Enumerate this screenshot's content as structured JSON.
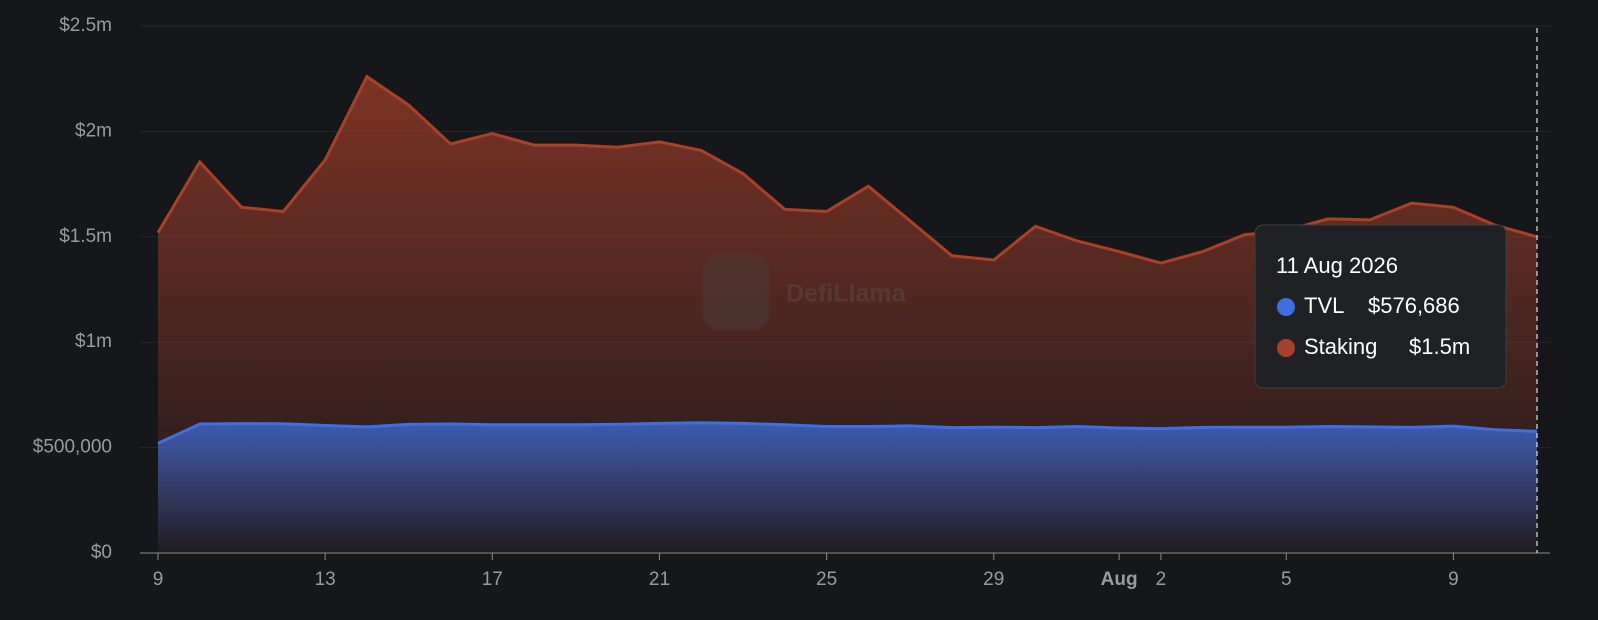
{
  "chart_data": {
    "type": "area",
    "x": [
      "2026-07-09",
      "2026-07-10",
      "2026-07-11",
      "2026-07-12",
      "2026-07-13",
      "2026-07-14",
      "2026-07-15",
      "2026-07-16",
      "2026-07-17",
      "2026-07-18",
      "2026-07-19",
      "2026-07-20",
      "2026-07-21",
      "2026-07-22",
      "2026-07-23",
      "2026-07-24",
      "2026-07-25",
      "2026-07-26",
      "2026-07-27",
      "2026-07-28",
      "2026-07-29",
      "2026-07-30",
      "2026-07-31",
      "2026-08-01",
      "2026-08-02",
      "2026-08-03",
      "2026-08-04",
      "2026-08-05",
      "2026-08-06",
      "2026-08-07",
      "2026-08-08",
      "2026-08-09",
      "2026-08-10",
      "2026-08-11"
    ],
    "series": [
      {
        "name": "TVL",
        "color": "#3f6ee0",
        "values": [
          520000,
          612000,
          614000,
          613000,
          605000,
          598000,
          610000,
          612000,
          608000,
          608000,
          608000,
          610000,
          615000,
          618000,
          615000,
          608000,
          600000,
          600000,
          603000,
          595000,
          597000,
          595000,
          600000,
          593000,
          590000,
          596000,
          597000,
          597000,
          600000,
          598000,
          596000,
          602000,
          585000,
          576686
        ]
      },
      {
        "name": "Staking",
        "color": "#a8402a",
        "values": [
          1520000,
          1855000,
          1640000,
          1620000,
          1865000,
          2260000,
          2125000,
          1940000,
          1990000,
          1935000,
          1935000,
          1925000,
          1950000,
          1910000,
          1800000,
          1630000,
          1620000,
          1740000,
          1575000,
          1410000,
          1390000,
          1550000,
          1480000,
          1430000,
          1375000,
          1430000,
          1510000,
          1530000,
          1585000,
          1580000,
          1660000,
          1640000,
          1555000,
          1500000
        ]
      }
    ],
    "ylim": [
      0,
      2500000
    ],
    "yticks": [
      {
        "value": 0,
        "label": "$0"
      },
      {
        "value": 500000,
        "label": "$500,000"
      },
      {
        "value": 1000000,
        "label": "$1m"
      },
      {
        "value": 1500000,
        "label": "$1.5m"
      },
      {
        "value": 2000000,
        "label": "$2m"
      },
      {
        "value": 2500000,
        "label": "$2.5m"
      }
    ],
    "xticks": [
      {
        "value": "2026-07-09",
        "label": "9"
      },
      {
        "value": "2026-07-13",
        "label": "13"
      },
      {
        "value": "2026-07-17",
        "label": "17"
      },
      {
        "value": "2026-07-21",
        "label": "21"
      },
      {
        "value": "2026-07-25",
        "label": "25"
      },
      {
        "value": "2026-07-29",
        "label": "29"
      },
      {
        "value": "2026-08-01",
        "label": "Aug"
      },
      {
        "value": "2026-08-02",
        "label": "2"
      },
      {
        "value": "2026-08-05",
        "label": "5"
      },
      {
        "value": "2026-08-09",
        "label": "9"
      }
    ],
    "grid": true,
    "watermark": "DefiLlama",
    "tooltip": {
      "date": "11 Aug 2026",
      "values": [
        "$576,686",
        "$1.5m"
      ]
    }
  }
}
